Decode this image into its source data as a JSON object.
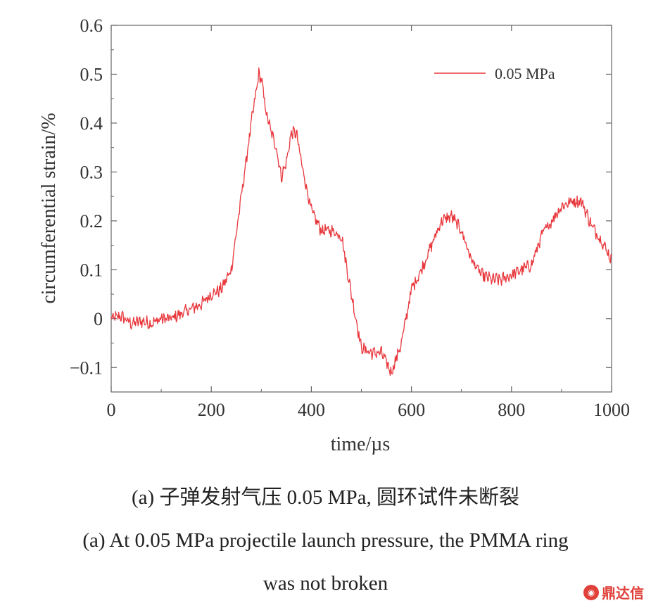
{
  "chart_data": {
    "type": "line",
    "xlabel": "time/µs",
    "ylabel": "circumferential strain/%",
    "xlim": [
      0,
      1000
    ],
    "ylim": [
      -0.15,
      0.6
    ],
    "xticks": [
      0,
      200,
      400,
      600,
      800,
      1000
    ],
    "xtick_labels": [
      "0",
      "200",
      "400",
      "600",
      "800",
      "1000"
    ],
    "yticks": [
      -0.1,
      0,
      0.1,
      0.2,
      0.3,
      0.4,
      0.5,
      0.6
    ],
    "ytick_labels": [
      "−0.1",
      "0",
      "0.1",
      "0.2",
      "0.3",
      "0.4",
      "0.5",
      "0.6"
    ],
    "grid": false,
    "legend_position": "top-right",
    "series": [
      {
        "name": "0.05 MPa",
        "color": "#e8383d",
        "x": [
          0,
          20,
          40,
          60,
          80,
          100,
          120,
          140,
          160,
          180,
          200,
          220,
          240,
          260,
          280,
          295,
          300,
          310,
          320,
          330,
          340,
          350,
          360,
          370,
          380,
          400,
          420,
          440,
          460,
          480,
          500,
          520,
          540,
          555,
          560,
          580,
          600,
          620,
          640,
          660,
          680,
          700,
          720,
          740,
          760,
          780,
          800,
          820,
          840,
          860,
          880,
          900,
          920,
          940,
          960,
          980,
          1000
        ],
        "y": [
          0.0,
          0.005,
          -0.01,
          -0.005,
          -0.01,
          0.0,
          0.0,
          0.01,
          0.02,
          0.03,
          0.05,
          0.06,
          0.1,
          0.25,
          0.4,
          0.5,
          0.49,
          0.42,
          0.38,
          0.35,
          0.29,
          0.32,
          0.38,
          0.38,
          0.32,
          0.22,
          0.18,
          0.18,
          0.17,
          0.05,
          -0.06,
          -0.07,
          -0.07,
          -0.1,
          -0.11,
          -0.05,
          0.06,
          0.1,
          0.15,
          0.2,
          0.21,
          0.18,
          0.12,
          0.09,
          0.08,
          0.08,
          0.09,
          0.1,
          0.11,
          0.17,
          0.2,
          0.23,
          0.24,
          0.24,
          0.19,
          0.16,
          0.12
        ]
      }
    ]
  },
  "caption": {
    "cn": "(a) 子弹发射气压 0.05 MPa, 圆环试件未断裂",
    "en_line1": "(a) At 0.05 MPa projectile launch pressure, the PMMA ring",
    "en_line2": "was not broken"
  },
  "watermark": {
    "icon": "dingdaxin-logo-icon",
    "text": "鼎达信"
  }
}
